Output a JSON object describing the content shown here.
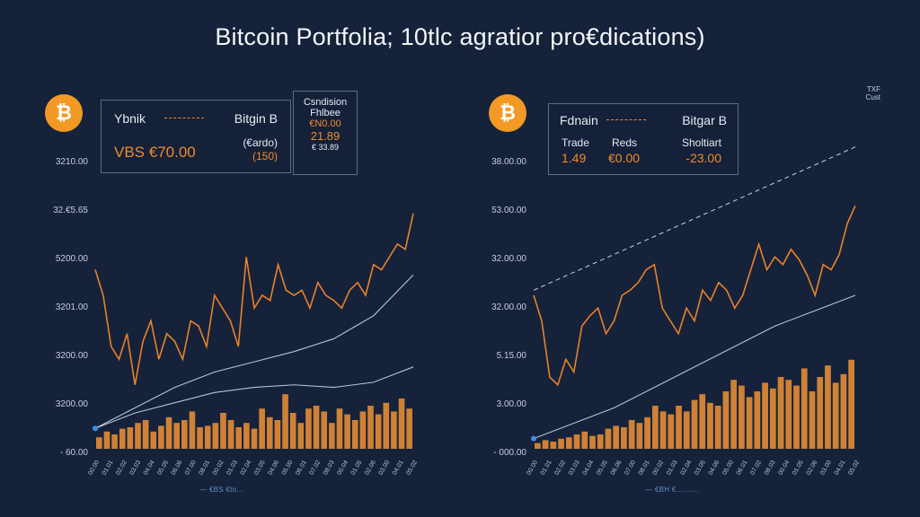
{
  "title": "Bitcoin Portfolia; 10tlc agratior pro€dications)",
  "colors": {
    "price": "#e8822a",
    "bars": "#e08a35",
    "trend": "#c9d4e6",
    "coin": "#f29a25",
    "background": "#15223a"
  },
  "left": {
    "coin_icon": "bitcoin-icon",
    "coin_symbol": "₿",
    "card": {
      "row1_left": "Ybnik",
      "row1_right": "Bitgin B",
      "row2_left": "VBS  €70.00",
      "row2_right_top": "(€ardo)",
      "row2_right_bottom": "(150)"
    },
    "side_card": {
      "line1": "Csndision",
      "line2": "Fhlbee",
      "line3": "€N0.00",
      "line4": "21.89",
      "line5": "€ 33.89"
    },
    "footer": "— €BS  €to..."
  },
  "right": {
    "coin_icon": "bitcoin-icon",
    "coin_symbol": "₿",
    "card": {
      "row1_left": "Fdnain",
      "row1_right": "Bitgar B",
      "row2_c1_label": "Trade",
      "row2_c2_label": "Reds",
      "row2_c3_label": "Sholtiart",
      "row3_c1_value": "1.49",
      "row3_c2_value": "€0.00",
      "row3_c3_value": "-23.00"
    },
    "corner_note_1": "TXF",
    "corner_note_2": "Cust",
    "footer": "— €BH  €.........."
  },
  "chart_data": [
    {
      "type": "line",
      "panel": "left",
      "title": "",
      "ylabel_ticks": [
        "3210.00",
        "32.€5.65",
        "5200.00",
        "3201.00",
        "3200.00",
        "3200.00",
        "- 60.00"
      ],
      "ylim": [
        0,
        100
      ],
      "xlim": [
        0,
        80
      ],
      "series": [
        {
          "name": "price",
          "x": [
            0,
            2,
            4,
            6,
            8,
            10,
            12,
            14,
            16,
            18,
            20,
            22,
            24,
            26,
            28,
            30,
            32,
            34,
            36,
            38,
            40,
            42,
            44,
            46,
            48,
            50,
            52,
            54,
            56,
            58,
            60,
            62,
            64,
            66,
            68,
            70,
            72,
            74,
            76,
            78,
            80
          ],
          "values": [
            70,
            60,
            40,
            35,
            45,
            25,
            42,
            50,
            35,
            45,
            42,
            35,
            50,
            48,
            40,
            60,
            55,
            50,
            40,
            75,
            55,
            60,
            58,
            72,
            62,
            60,
            62,
            55,
            65,
            60,
            58,
            55,
            62,
            65,
            60,
            72,
            70,
            75,
            80,
            78,
            92
          ]
        },
        {
          "name": "trend-upper",
          "x": [
            0,
            10,
            20,
            30,
            40,
            50,
            60,
            70,
            80
          ],
          "values": [
            8,
            16,
            24,
            30,
            34,
            38,
            43,
            52,
            68
          ]
        },
        {
          "name": "trend-lower",
          "x": [
            0,
            10,
            20,
            30,
            40,
            50,
            60,
            70,
            80
          ],
          "values": [
            8,
            14,
            18,
            22,
            24,
            25,
            24,
            26,
            32
          ]
        }
      ],
      "volume": [
        8,
        12,
        10,
        14,
        15,
        18,
        20,
        12,
        16,
        22,
        18,
        20,
        26,
        15,
        16,
        18,
        25,
        20,
        15,
        18,
        14,
        28,
        22,
        20,
        38,
        25,
        18,
        28,
        30,
        26,
        18,
        28,
        24,
        20,
        26,
        30,
        24,
        32,
        26,
        35,
        28
      ]
    },
    {
      "type": "line",
      "panel": "right",
      "title": "",
      "ylabel_ticks": [
        "38.00.00",
        "53.00.00",
        "32.00.00",
        "32.00.00",
        "5.15.00",
        "3.00.00",
        "- 000.00"
      ],
      "ylim": [
        0,
        100
      ],
      "xlim": [
        0,
        80
      ],
      "series": [
        {
          "name": "price",
          "x": [
            0,
            2,
            4,
            6,
            8,
            10,
            12,
            14,
            16,
            18,
            20,
            22,
            24,
            26,
            28,
            30,
            32,
            34,
            36,
            38,
            40,
            42,
            44,
            46,
            48,
            50,
            52,
            54,
            56,
            58,
            60,
            62,
            64,
            66,
            68,
            70,
            72,
            74,
            76,
            78,
            80
          ],
          "values": [
            60,
            50,
            28,
            25,
            35,
            30,
            48,
            52,
            55,
            45,
            50,
            60,
            62,
            65,
            70,
            72,
            55,
            50,
            45,
            55,
            50,
            62,
            58,
            65,
            62,
            55,
            60,
            70,
            80,
            70,
            75,
            72,
            78,
            74,
            68,
            60,
            72,
            70,
            76,
            88,
            95
          ]
        },
        {
          "name": "trend-dashed",
          "x": [
            0,
            80
          ],
          "values": [
            62,
            118
          ]
        },
        {
          "name": "trend-solid",
          "x": [
            0,
            10,
            20,
            30,
            40,
            50,
            60,
            70,
            80
          ],
          "values": [
            4,
            10,
            16,
            24,
            32,
            40,
            48,
            54,
            60
          ]
        }
      ],
      "volume": [
        4,
        6,
        5,
        7,
        8,
        10,
        12,
        9,
        10,
        14,
        16,
        15,
        20,
        18,
        22,
        30,
        26,
        24,
        30,
        26,
        34,
        38,
        32,
        30,
        40,
        48,
        44,
        36,
        40,
        46,
        42,
        50,
        48,
        44,
        56,
        40,
        50,
        58,
        46,
        52,
        62
      ]
    }
  ]
}
